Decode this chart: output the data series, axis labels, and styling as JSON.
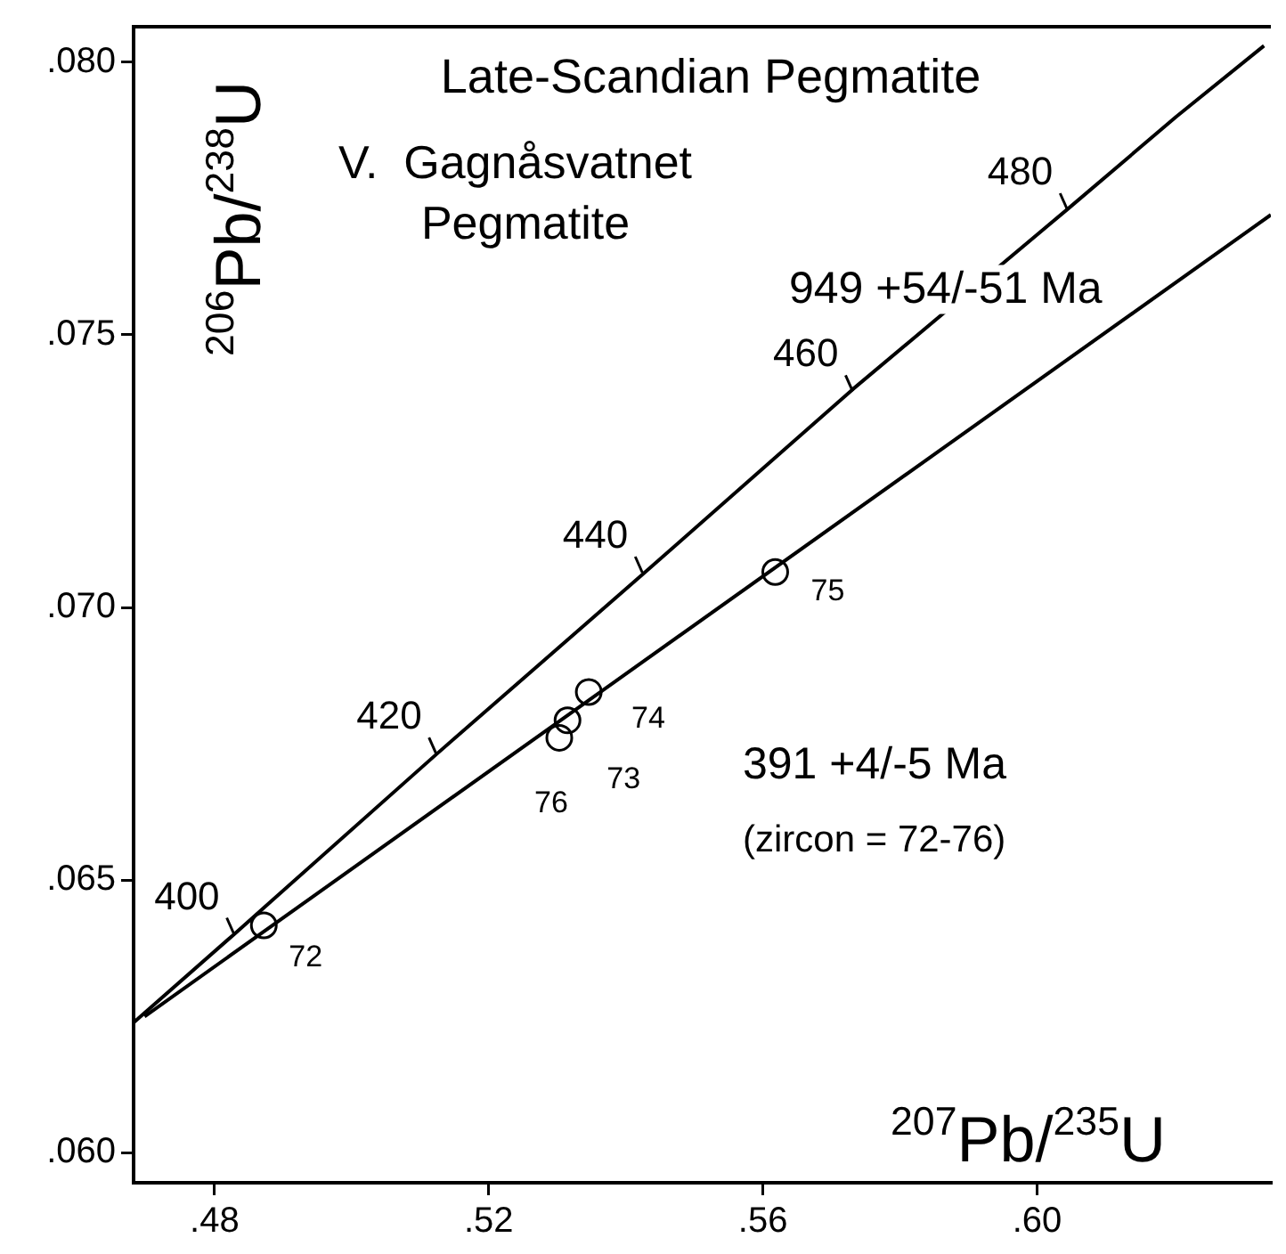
{
  "chart_data": {
    "type": "line",
    "title": "Late-Scandian Pegmatite",
    "subtitle": "V.  Gagnåsvatnet\nPegmatite",
    "xlabel": "$^{207}$Pb/$^{235}$U",
    "ylabel": "$^{206}$Pb/$^{238}$U",
    "xlim": [
      0.4682,
      0.6341
    ],
    "ylim": [
      0.05945,
      0.08065
    ],
    "xticks": [
      {
        "value": 0.48,
        "label": ".48"
      },
      {
        "value": 0.52,
        "label": ".52"
      },
      {
        "value": 0.56,
        "label": ".56"
      },
      {
        "value": 0.6,
        "label": ".60"
      }
    ],
    "yticks": [
      {
        "value": 0.06,
        "label": ".060"
      },
      {
        "value": 0.065,
        "label": ".065"
      },
      {
        "value": 0.07,
        "label": ".070"
      },
      {
        "value": 0.075,
        "label": ".075"
      },
      {
        "value": 0.08,
        "label": ".080"
      }
    ],
    "grid": false,
    "legend": false,
    "series": [
      {
        "color": "#000000",
        "marker": "none",
        "x": [
          0.4683,
          0.4828,
          0.5123,
          0.5424,
          0.5731,
          0.6044,
          0.6203,
          0.6331
        ],
        "values": [
          0.0624,
          0.064,
          0.0673,
          0.0706,
          0.074,
          0.0773,
          0.079,
          0.0803
        ]
      },
      {
        "color": "#000000",
        "marker": "none",
        "x": [
          0.4698,
          0.6341
        ],
        "values": [
          0.0625,
          0.0772
        ]
      },
      {
        "type": "scatter",
        "color": "#000000",
        "marker": "circle",
        "x": [
          0.4872,
          0.5346,
          0.5315,
          0.5303,
          0.5618
        ],
        "values": [
          0.06417,
          0.06845,
          0.06793,
          0.06761,
          0.07065
        ]
      }
    ],
    "annotations": [
      "949 +54/-51 Ma",
      "391 +4/-5 Ma",
      "(zircon = 72-76)",
      {
        "text": "400",
        "x": 0.48283,
        "y": 0.064015
      },
      {
        "text": "420",
        "x": 0.51233,
        "y": 0.067322
      },
      {
        "text": "440",
        "x": 0.54242,
        "y": 0.070638
      },
      {
        "text": "460",
        "x": 0.5731,
        "y": 0.073965
      },
      {
        "text": "480",
        "x": 0.60439,
        "y": 0.077302
      },
      {
        "text": "72",
        "x": 0.4872,
        "y": 0.06417
      },
      {
        "text": "74",
        "x": 0.5346,
        "y": 0.06845
      },
      {
        "text": "73",
        "x": 0.5315,
        "y": 0.06793
      },
      {
        "text": "76",
        "x": 0.5303,
        "y": 0.06761
      },
      {
        "text": "75",
        "x": 0.5618,
        "y": 0.07065
      }
    ]
  }
}
